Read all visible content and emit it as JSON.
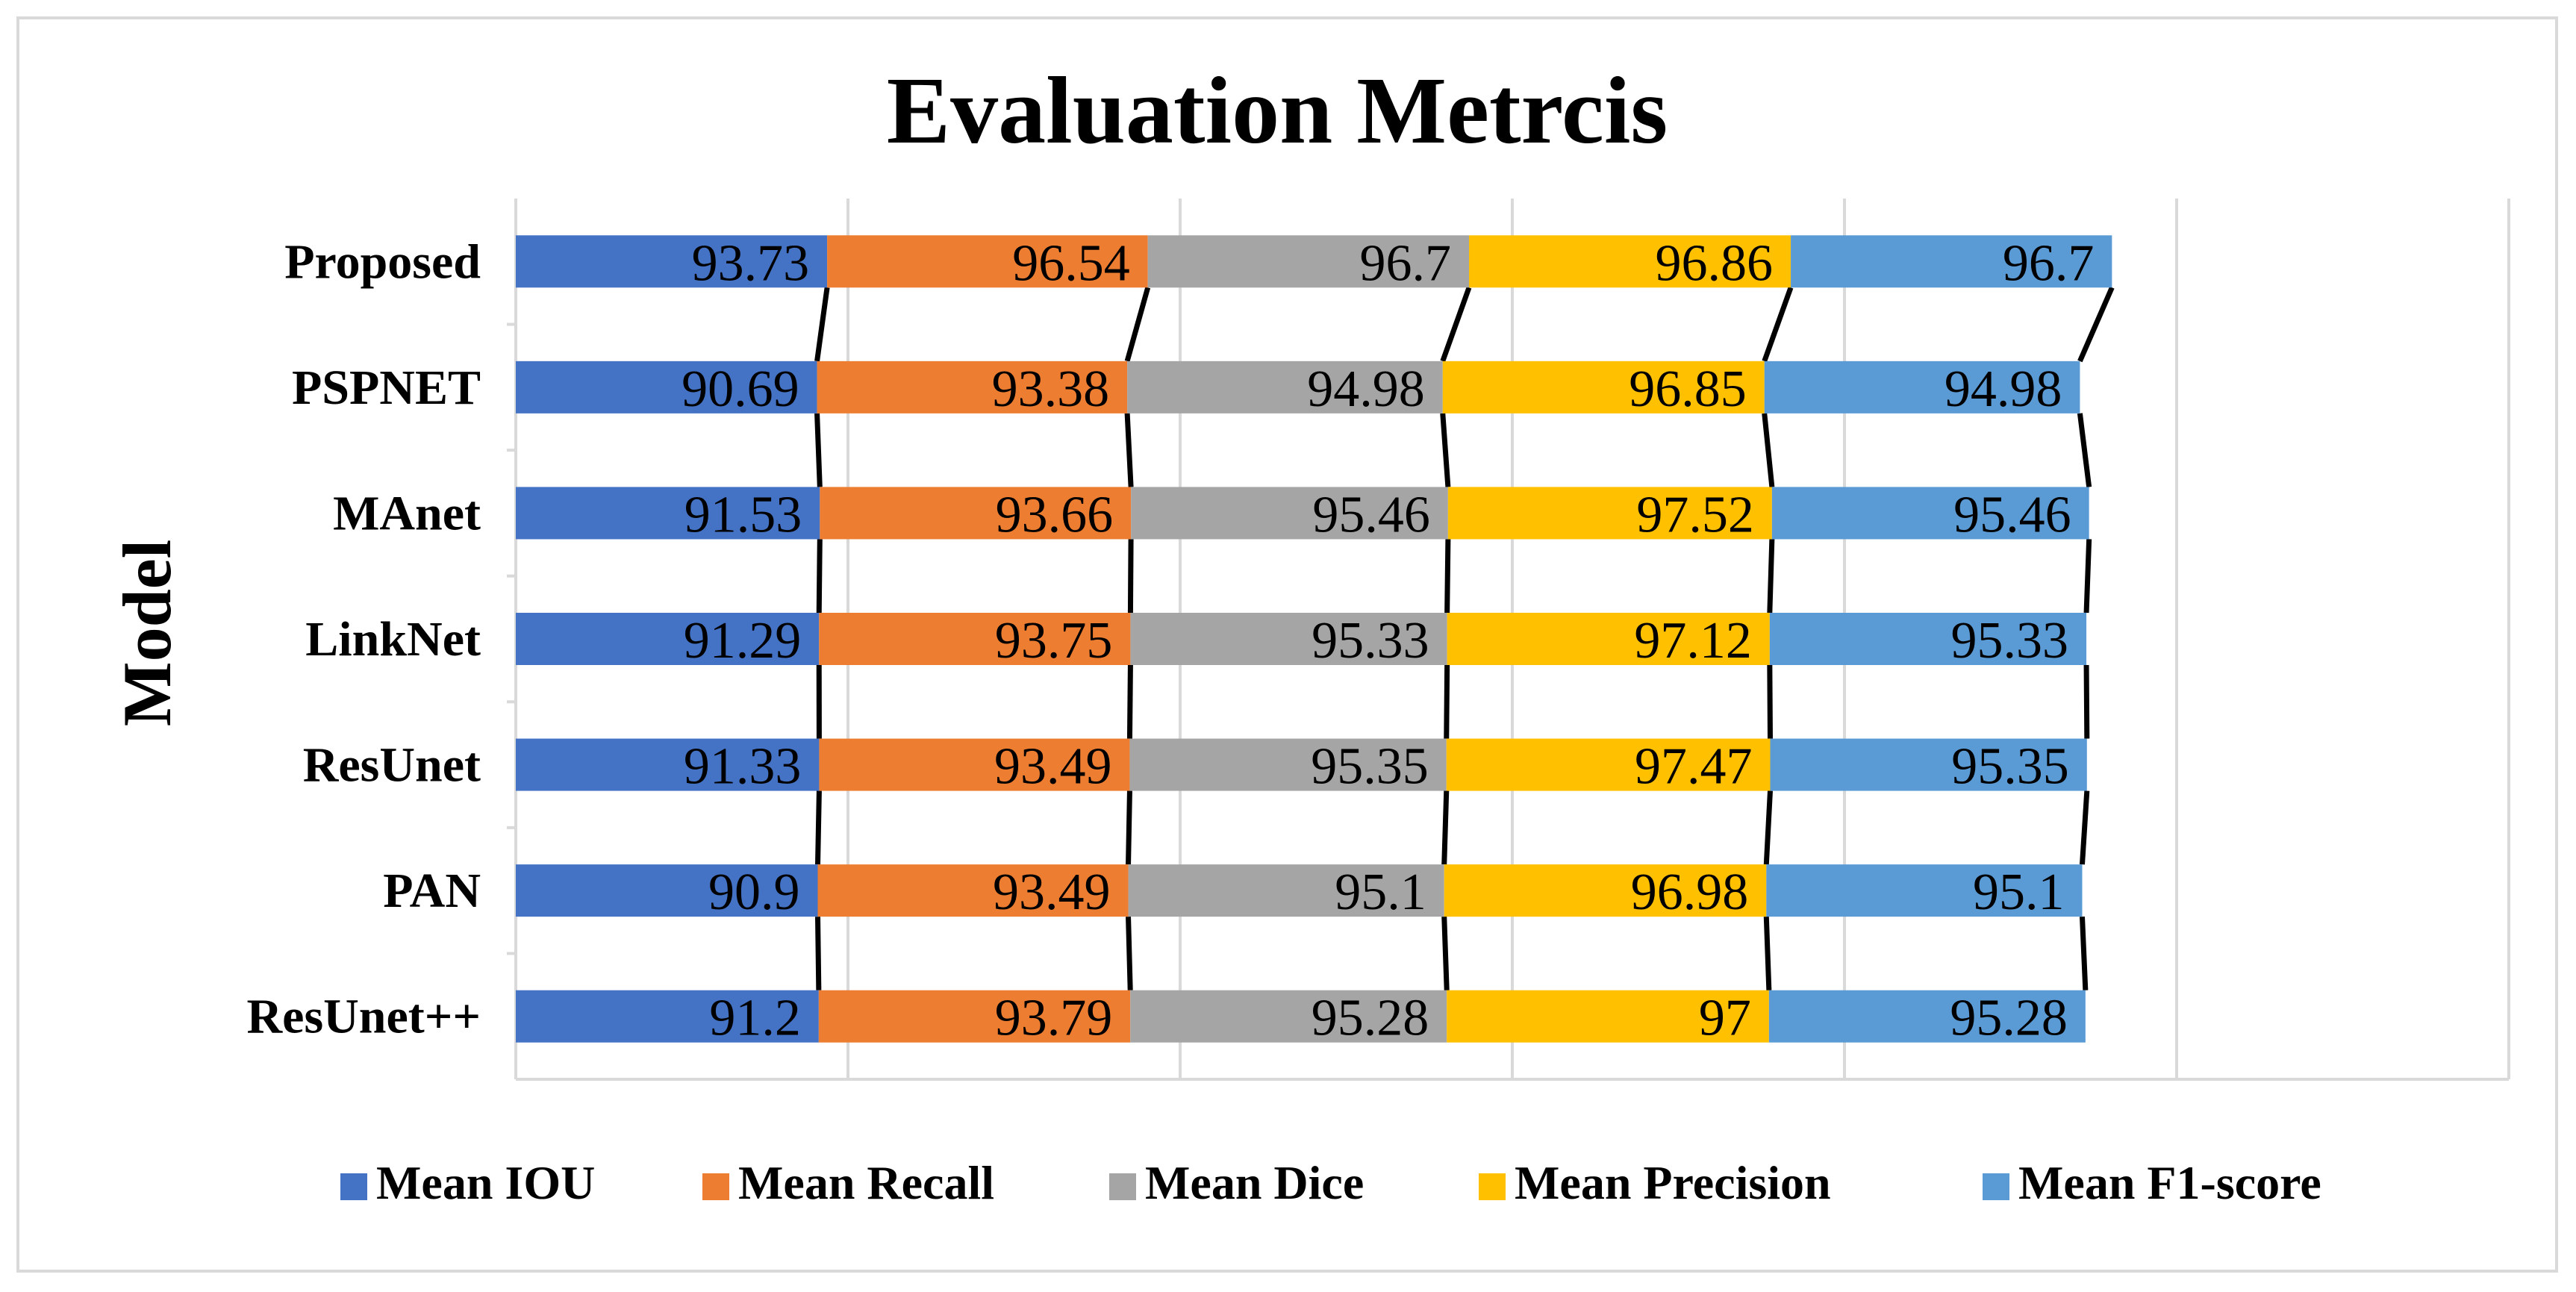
{
  "chart_data": {
    "type": "bar",
    "orientation": "horizontal",
    "stacked": true,
    "title": "Evaluation Metrcis",
    "ylabel": "Model",
    "xlabel": "",
    "categories": [
      "Proposed",
      "PSPNET",
      "MAnet",
      "LinkNet",
      "ResUnet",
      "PAN",
      "ResUnet++"
    ],
    "series": [
      {
        "name": "Mean IOU",
        "color": "#4472c4",
        "values": [
          93.73,
          90.69,
          91.53,
          91.29,
          91.33,
          90.9,
          91.2
        ]
      },
      {
        "name": "Mean Recall",
        "color": "#ed7d31",
        "values": [
          96.54,
          93.38,
          93.66,
          93.75,
          93.49,
          93.49,
          93.79
        ]
      },
      {
        "name": "Mean Dice",
        "color": "#a5a5a5",
        "values": [
          96.7,
          94.98,
          95.46,
          95.33,
          95.35,
          95.1,
          95.28
        ]
      },
      {
        "name": "Mean Precision",
        "color": "#ffc000",
        "values": [
          96.86,
          96.85,
          97.52,
          97.12,
          97.47,
          96.98,
          97
        ]
      },
      {
        "name": "Mean F1-score",
        "color": "#5b9bd5",
        "values": [
          96.7,
          94.98,
          95.46,
          95.33,
          95.35,
          95.1,
          95.28
        ]
      }
    ],
    "xlim": [
      0,
      600
    ],
    "grid": true,
    "series_lines": true,
    "legend": "bottom"
  }
}
